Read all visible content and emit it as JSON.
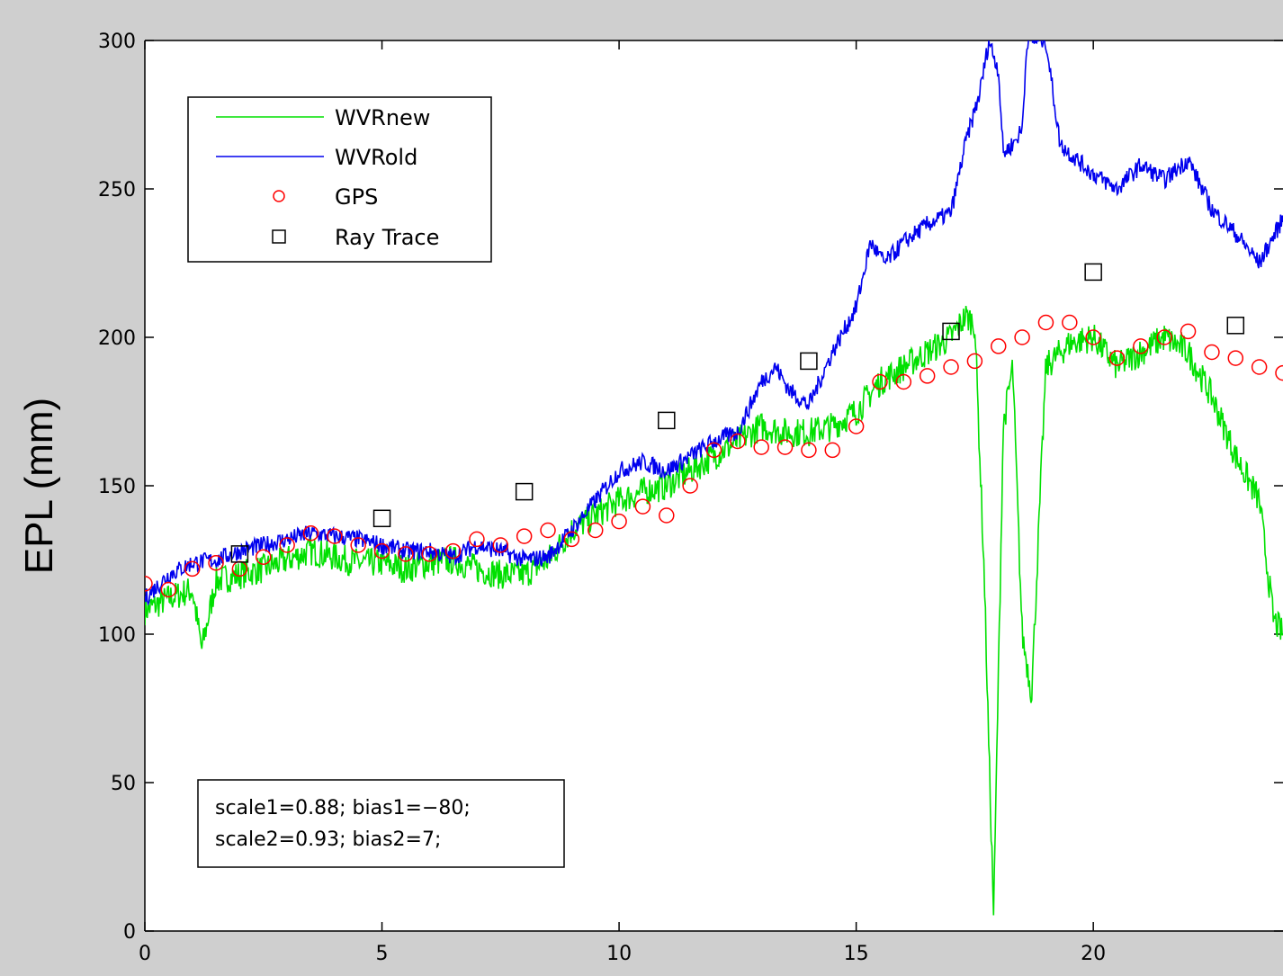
{
  "chart_data": {
    "type": "line",
    "title": "",
    "xlabel": "",
    "ylabel": "EPL (mm)",
    "xlim": [
      0,
      24
    ],
    "ylim": [
      0,
      300
    ],
    "xticks": [
      0,
      5,
      10,
      15,
      20
    ],
    "yticks": [
      0,
      50,
      100,
      150,
      200,
      250,
      300
    ],
    "grid": false,
    "legend": {
      "placement": "top-left",
      "entries": [
        "WVRnew",
        "WVRold",
        "GPS",
        "Ray Trace"
      ]
    },
    "annotation": {
      "lines": [
        "scale1=0.88; bias1=−80;",
        "scale2=0.93; bias2=7;"
      ]
    },
    "series": [
      {
        "name": "WVRnew",
        "style": "line",
        "color": "#00e000",
        "x": [
          0,
          0.5,
          1,
          1.2,
          1.5,
          2,
          2.5,
          3,
          3.5,
          4,
          4.5,
          5,
          5.5,
          6,
          6.5,
          7,
          7.5,
          8,
          8.5,
          9,
          9.5,
          10,
          10.5,
          11,
          11.5,
          12,
          12.5,
          13,
          13.5,
          14,
          14.5,
          15,
          15.5,
          16,
          16.5,
          17,
          17.3,
          17.5,
          17.7,
          17.8,
          17.9,
          18.1,
          18.3,
          18.5,
          18.7,
          19,
          19.5,
          20,
          20.5,
          21,
          21.5,
          22,
          22.5,
          23,
          23.5,
          23.8,
          24
        ],
        "y": [
          108,
          112,
          115,
          95,
          118,
          120,
          122,
          125,
          128,
          126,
          124,
          124,
          122,
          124,
          125,
          122,
          120,
          120,
          125,
          135,
          140,
          145,
          148,
          150,
          155,
          160,
          165,
          170,
          168,
          168,
          170,
          175,
          185,
          190,
          195,
          200,
          207,
          205,
          120,
          60,
          5,
          170,
          190,
          100,
          80,
          190,
          198,
          200,
          190,
          195,
          200,
          195,
          180,
          160,
          145,
          105,
          100
        ],
        "noise": 5
      },
      {
        "name": "WVRold",
        "style": "line",
        "color": "#0000ee",
        "x": [
          0,
          0.5,
          1,
          1.5,
          2,
          2.5,
          3,
          3.5,
          4,
          4.5,
          5,
          5.5,
          6,
          6.5,
          7,
          7.5,
          8,
          8.5,
          9,
          9.5,
          10,
          10.5,
          11,
          11.5,
          12,
          12.5,
          13,
          13.3,
          13.6,
          14,
          14.5,
          15,
          15.3,
          15.6,
          16,
          16.5,
          17,
          17.3,
          17.6,
          17.8,
          18,
          18.1,
          18.3,
          18.5,
          18.6,
          18.8,
          19,
          19.3,
          19.5,
          20,
          20.5,
          21,
          21.5,
          22,
          22.5,
          23,
          23.5,
          24
        ],
        "y": [
          112,
          120,
          124,
          125,
          128,
          130,
          132,
          134,
          133,
          132,
          130,
          128,
          128,
          126,
          130,
          128,
          125,
          126,
          135,
          145,
          155,
          158,
          155,
          160,
          165,
          168,
          185,
          190,
          182,
          177,
          195,
          210,
          232,
          225,
          232,
          238,
          242,
          265,
          282,
          300,
          290,
          262,
          265,
          270,
          300,
          300,
          300,
          265,
          262,
          255,
          250,
          258,
          253,
          260,
          243,
          235,
          225,
          240
        ],
        "noise": 3
      },
      {
        "name": "GPS",
        "style": "circle",
        "color": "#ff0000",
        "x": [
          0,
          0.5,
          1,
          1.5,
          2,
          2.5,
          3,
          3.5,
          4,
          4.5,
          5,
          5.5,
          6,
          6.5,
          7,
          7.5,
          8,
          8.5,
          9,
          9.5,
          10,
          10.5,
          11,
          11.5,
          12,
          12.5,
          13,
          13.5,
          14,
          14.5,
          15,
          15.5,
          16,
          16.5,
          17,
          17.5,
          18,
          18.5,
          19,
          19.5,
          20,
          20.5,
          21,
          21.5,
          22,
          22.5,
          23,
          23.5,
          24
        ],
        "y": [
          117,
          115,
          122,
          124,
          122,
          126,
          130,
          134,
          133,
          130,
          128,
          127,
          127,
          128,
          132,
          130,
          133,
          135,
          132,
          135,
          138,
          143,
          140,
          150,
          162,
          165,
          163,
          163,
          162,
          162,
          170,
          185,
          185,
          187,
          190,
          192,
          197,
          200,
          205,
          205,
          200,
          193,
          197,
          200,
          202,
          195,
          193,
          190,
          188
        ]
      },
      {
        "name": "Ray Trace",
        "style": "square",
        "color": "#000000",
        "x": [
          2,
          5,
          8,
          11,
          14,
          17,
          20,
          23
        ],
        "y": [
          127,
          139,
          148,
          172,
          192,
          202,
          222,
          204
        ]
      }
    ]
  }
}
